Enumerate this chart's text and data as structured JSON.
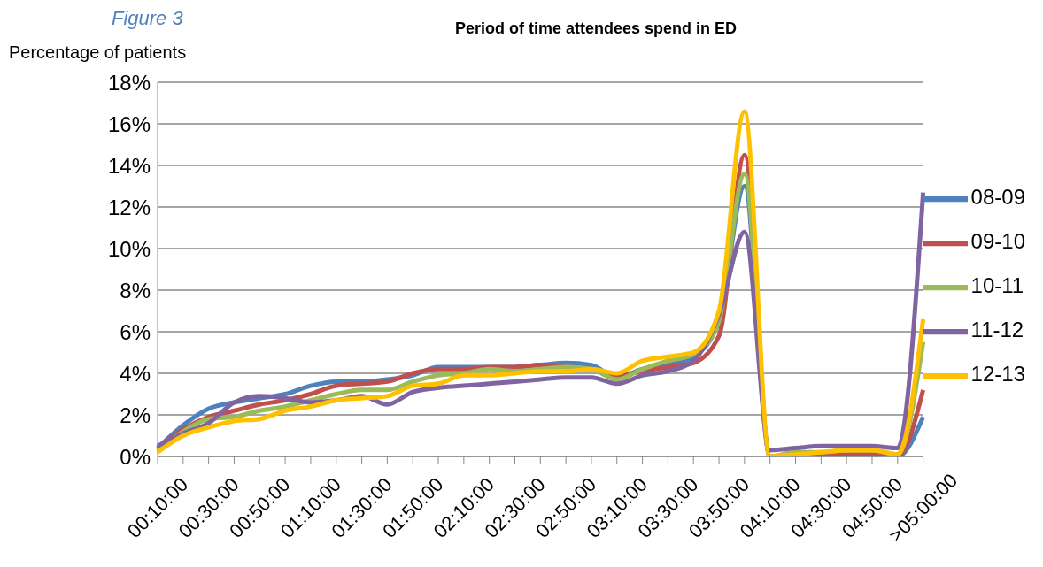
{
  "chart_data": {
    "type": "line",
    "title": "Period of time attendees spend in ED",
    "ylabel": "Percentage of patients",
    "annotations": [
      "Figure 3"
    ],
    "categories": [
      "00:10:00",
      null,
      "00:30:00",
      null,
      "00:50:00",
      null,
      "01:10:00",
      null,
      "01:30:00",
      null,
      "01:50:00",
      null,
      "02:10:00",
      null,
      "02:30:00",
      null,
      "02:50:00",
      null,
      "03:10:00",
      null,
      "03:30:00",
      null,
      "03:50:00",
      null,
      "04:10:00",
      null,
      "04:30:00",
      null,
      "04:50:00",
      null,
      ">05:00:00"
    ],
    "series": [
      {
        "name": "08-09",
        "color": "#4f81bd",
        "values": [
          0.4,
          1.5,
          2.3,
          2.6,
          2.8,
          3.0,
          3.4,
          3.6,
          3.6,
          3.7,
          3.9,
          4.3,
          4.3,
          4.3,
          4.3,
          4.4,
          4.5,
          4.4,
          3.8,
          4.2,
          4.4,
          4.8,
          6.5,
          13.0,
          0,
          0,
          0,
          0,
          0,
          0,
          1.9
        ]
      },
      {
        "name": "09-10",
        "color": "#c0504d",
        "values": [
          0.4,
          1.3,
          1.9,
          2.2,
          2.5,
          2.7,
          3.0,
          3.4,
          3.5,
          3.6,
          4.0,
          4.2,
          4.2,
          4.3,
          4.3,
          4.4,
          4.3,
          4.2,
          3.9,
          4.1,
          4.3,
          4.5,
          5.8,
          14.5,
          0,
          0,
          0,
          0.1,
          0.1,
          0,
          3.2
        ]
      },
      {
        "name": "10-11",
        "color": "#9bbb59",
        "values": [
          0.3,
          1.2,
          1.8,
          1.9,
          2.2,
          2.4,
          2.7,
          3.0,
          3.2,
          3.2,
          3.6,
          3.9,
          4.0,
          4.2,
          4.1,
          4.2,
          4.3,
          4.2,
          3.7,
          4.2,
          4.6,
          4.9,
          6.5,
          13.6,
          0,
          0.2,
          0.2,
          0.3,
          0.3,
          0.1,
          5.5
        ]
      },
      {
        "name": "11-12",
        "color": "#8064a2",
        "values": [
          0.5,
          1.1,
          1.6,
          2.6,
          2.9,
          2.8,
          2.6,
          2.7,
          2.9,
          2.5,
          3.1,
          3.3,
          3.4,
          3.5,
          3.6,
          3.7,
          3.8,
          3.8,
          3.5,
          3.9,
          4.1,
          4.6,
          6.8,
          10.8,
          0.3,
          0.4,
          0.5,
          0.5,
          0.5,
          0.4,
          12.7
        ]
      },
      {
        "name": "12-13",
        "color": "#ffc000",
        "values": [
          0.2,
          1.0,
          1.4,
          1.7,
          1.8,
          2.2,
          2.4,
          2.7,
          2.8,
          2.9,
          3.4,
          3.5,
          3.9,
          3.9,
          4.0,
          4.1,
          4.1,
          4.2,
          4.0,
          4.6,
          4.8,
          5.0,
          7.0,
          16.6,
          0,
          0.1,
          0.2,
          0.3,
          0.3,
          0.1,
          6.6
        ]
      }
    ],
    "ylim": [
      0,
      18
    ],
    "yticks": [
      {
        "value": 0,
        "label": "0%"
      },
      {
        "value": 2,
        "label": "2%"
      },
      {
        "value": 4,
        "label": "4%"
      },
      {
        "value": 6,
        "label": "6%"
      },
      {
        "value": 8,
        "label": "8%"
      },
      {
        "value": 10,
        "label": "10%"
      },
      {
        "value": 12,
        "label": "12%"
      },
      {
        "value": 14,
        "label": "14%"
      },
      {
        "value": 16,
        "label": "16%"
      },
      {
        "value": 18,
        "label": "18%"
      }
    ],
    "grid": "y",
    "legend": "right",
    "marker": "none",
    "line_style": "solid"
  }
}
